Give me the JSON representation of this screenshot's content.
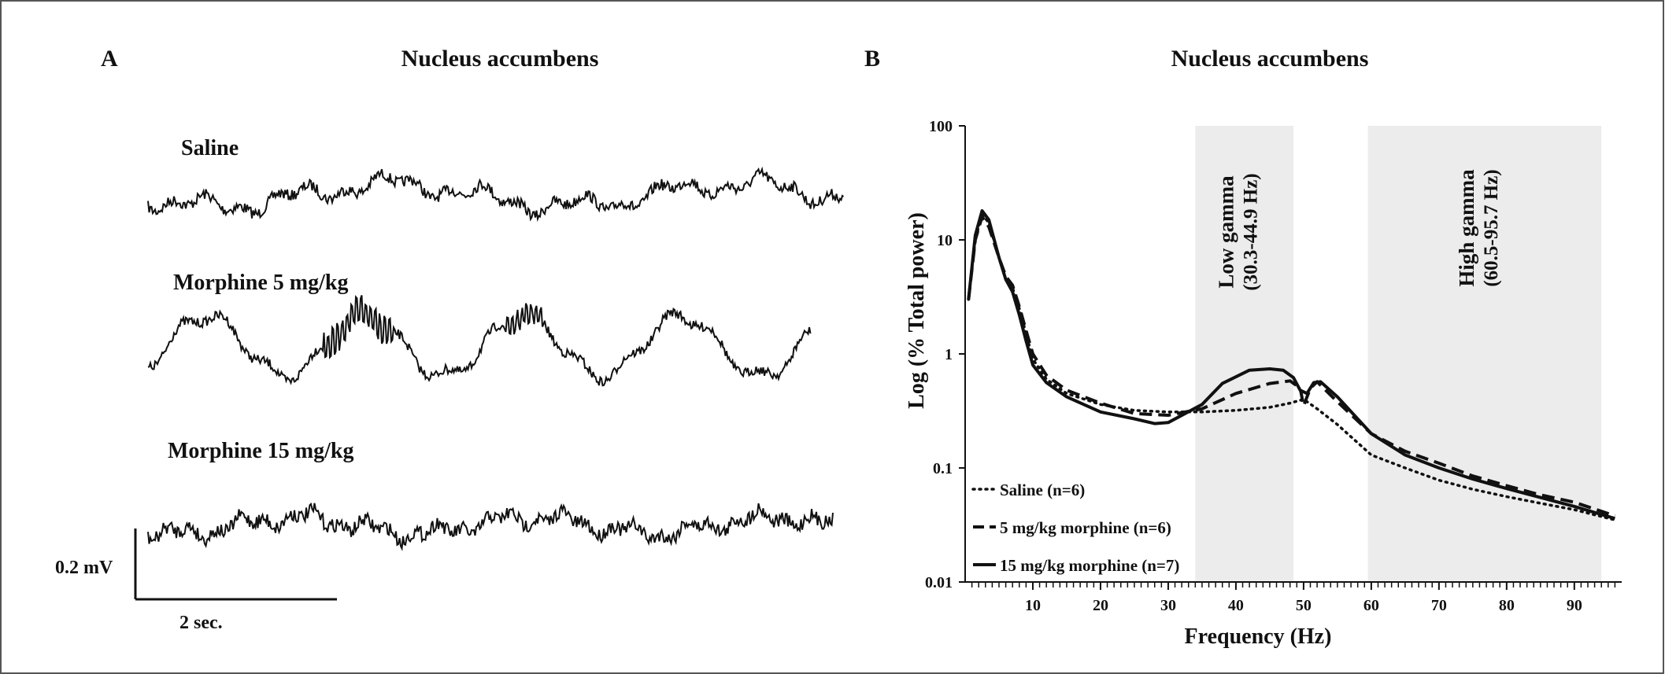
{
  "panel_a": {
    "letter": "A",
    "title": "Nucleus accumbens",
    "traces": [
      {
        "label": "Saline"
      },
      {
        "label": "Morphine 5 mg/kg"
      },
      {
        "label": "Morphine 15 mg/kg"
      }
    ],
    "scale_bar": {
      "voltage_label": "0.2 mV",
      "time_label": "2 sec."
    }
  },
  "panel_b": {
    "letter": "B",
    "title": "Nucleus accumbens",
    "bands": [
      {
        "name": "Low gamma",
        "range_label": "(30.3-44.9 Hz)",
        "from": 34,
        "to": 48.5
      },
      {
        "name": "High gamma",
        "range_label": "(60.5-95.7 Hz)",
        "from": 59.5,
        "to": 94
      }
    ]
  },
  "chart_data": {
    "type": "line",
    "xlabel": "Frequency (Hz)",
    "ylabel": "Log (% Total power)",
    "xlim": [
      0,
      97
    ],
    "ylim": [
      0.01,
      100
    ],
    "yscale": "log",
    "xticks": [
      10,
      20,
      30,
      40,
      50,
      60,
      70,
      80,
      90
    ],
    "yticks": [
      0.01,
      0.1,
      1,
      10,
      100
    ],
    "ytick_labels": [
      "0.01",
      "0.1",
      "1",
      "10",
      "100"
    ],
    "legend_position": "bottom-left",
    "series": [
      {
        "name": "Saline (n=6)",
        "style": "dotted",
        "x": [
          0.5,
          1.5,
          2.5,
          3.5,
          5,
          6,
          7,
          8,
          9,
          10,
          12,
          15,
          20,
          25,
          30,
          35,
          40,
          45,
          48,
          50,
          52,
          55,
          60,
          65,
          70,
          75,
          80,
          85,
          90,
          96
        ],
        "y": [
          3,
          10,
          17,
          14,
          7,
          4.5,
          3.8,
          2.5,
          1.5,
          0.9,
          0.6,
          0.45,
          0.36,
          0.32,
          0.31,
          0.31,
          0.32,
          0.34,
          0.37,
          0.4,
          0.33,
          0.24,
          0.13,
          0.1,
          0.078,
          0.065,
          0.056,
          0.049,
          0.043,
          0.035
        ]
      },
      {
        "name": "5 mg/kg morphine (n=6)",
        "style": "dashed",
        "x": [
          0.5,
          1.5,
          2.5,
          3.5,
          5,
          6,
          7,
          8,
          9,
          10,
          12,
          15,
          20,
          25,
          30,
          35,
          40,
          45,
          48,
          49.5,
          50,
          51,
          52,
          55,
          60,
          65,
          70,
          75,
          80,
          85,
          90,
          96
        ],
        "y": [
          3,
          10,
          16,
          13,
          7,
          4.8,
          4,
          2.6,
          1.6,
          1,
          0.65,
          0.48,
          0.37,
          0.3,
          0.29,
          0.33,
          0.45,
          0.55,
          0.58,
          0.5,
          0.35,
          0.5,
          0.57,
          0.38,
          0.2,
          0.14,
          0.11,
          0.085,
          0.07,
          0.058,
          0.05,
          0.038
        ]
      },
      {
        "name": "15 mg/kg morphine (n=7)",
        "style": "solid",
        "x": [
          0.5,
          1.5,
          2.5,
          3.5,
          5,
          6,
          7,
          8,
          9,
          10,
          12,
          15,
          20,
          25,
          28,
          30,
          35,
          38,
          42,
          45,
          47,
          48.5,
          49.5,
          50.5,
          51.5,
          52.5,
          55,
          60,
          65,
          70,
          75,
          80,
          85,
          90,
          96
        ],
        "y": [
          3,
          11,
          18,
          15,
          7,
          4.5,
          3.5,
          2.2,
          1.3,
          0.8,
          0.56,
          0.42,
          0.31,
          0.27,
          0.245,
          0.25,
          0.36,
          0.55,
          0.72,
          0.74,
          0.72,
          0.62,
          0.48,
          0.45,
          0.56,
          0.57,
          0.42,
          0.2,
          0.13,
          0.1,
          0.08,
          0.066,
          0.055,
          0.046,
          0.036
        ]
      }
    ]
  }
}
